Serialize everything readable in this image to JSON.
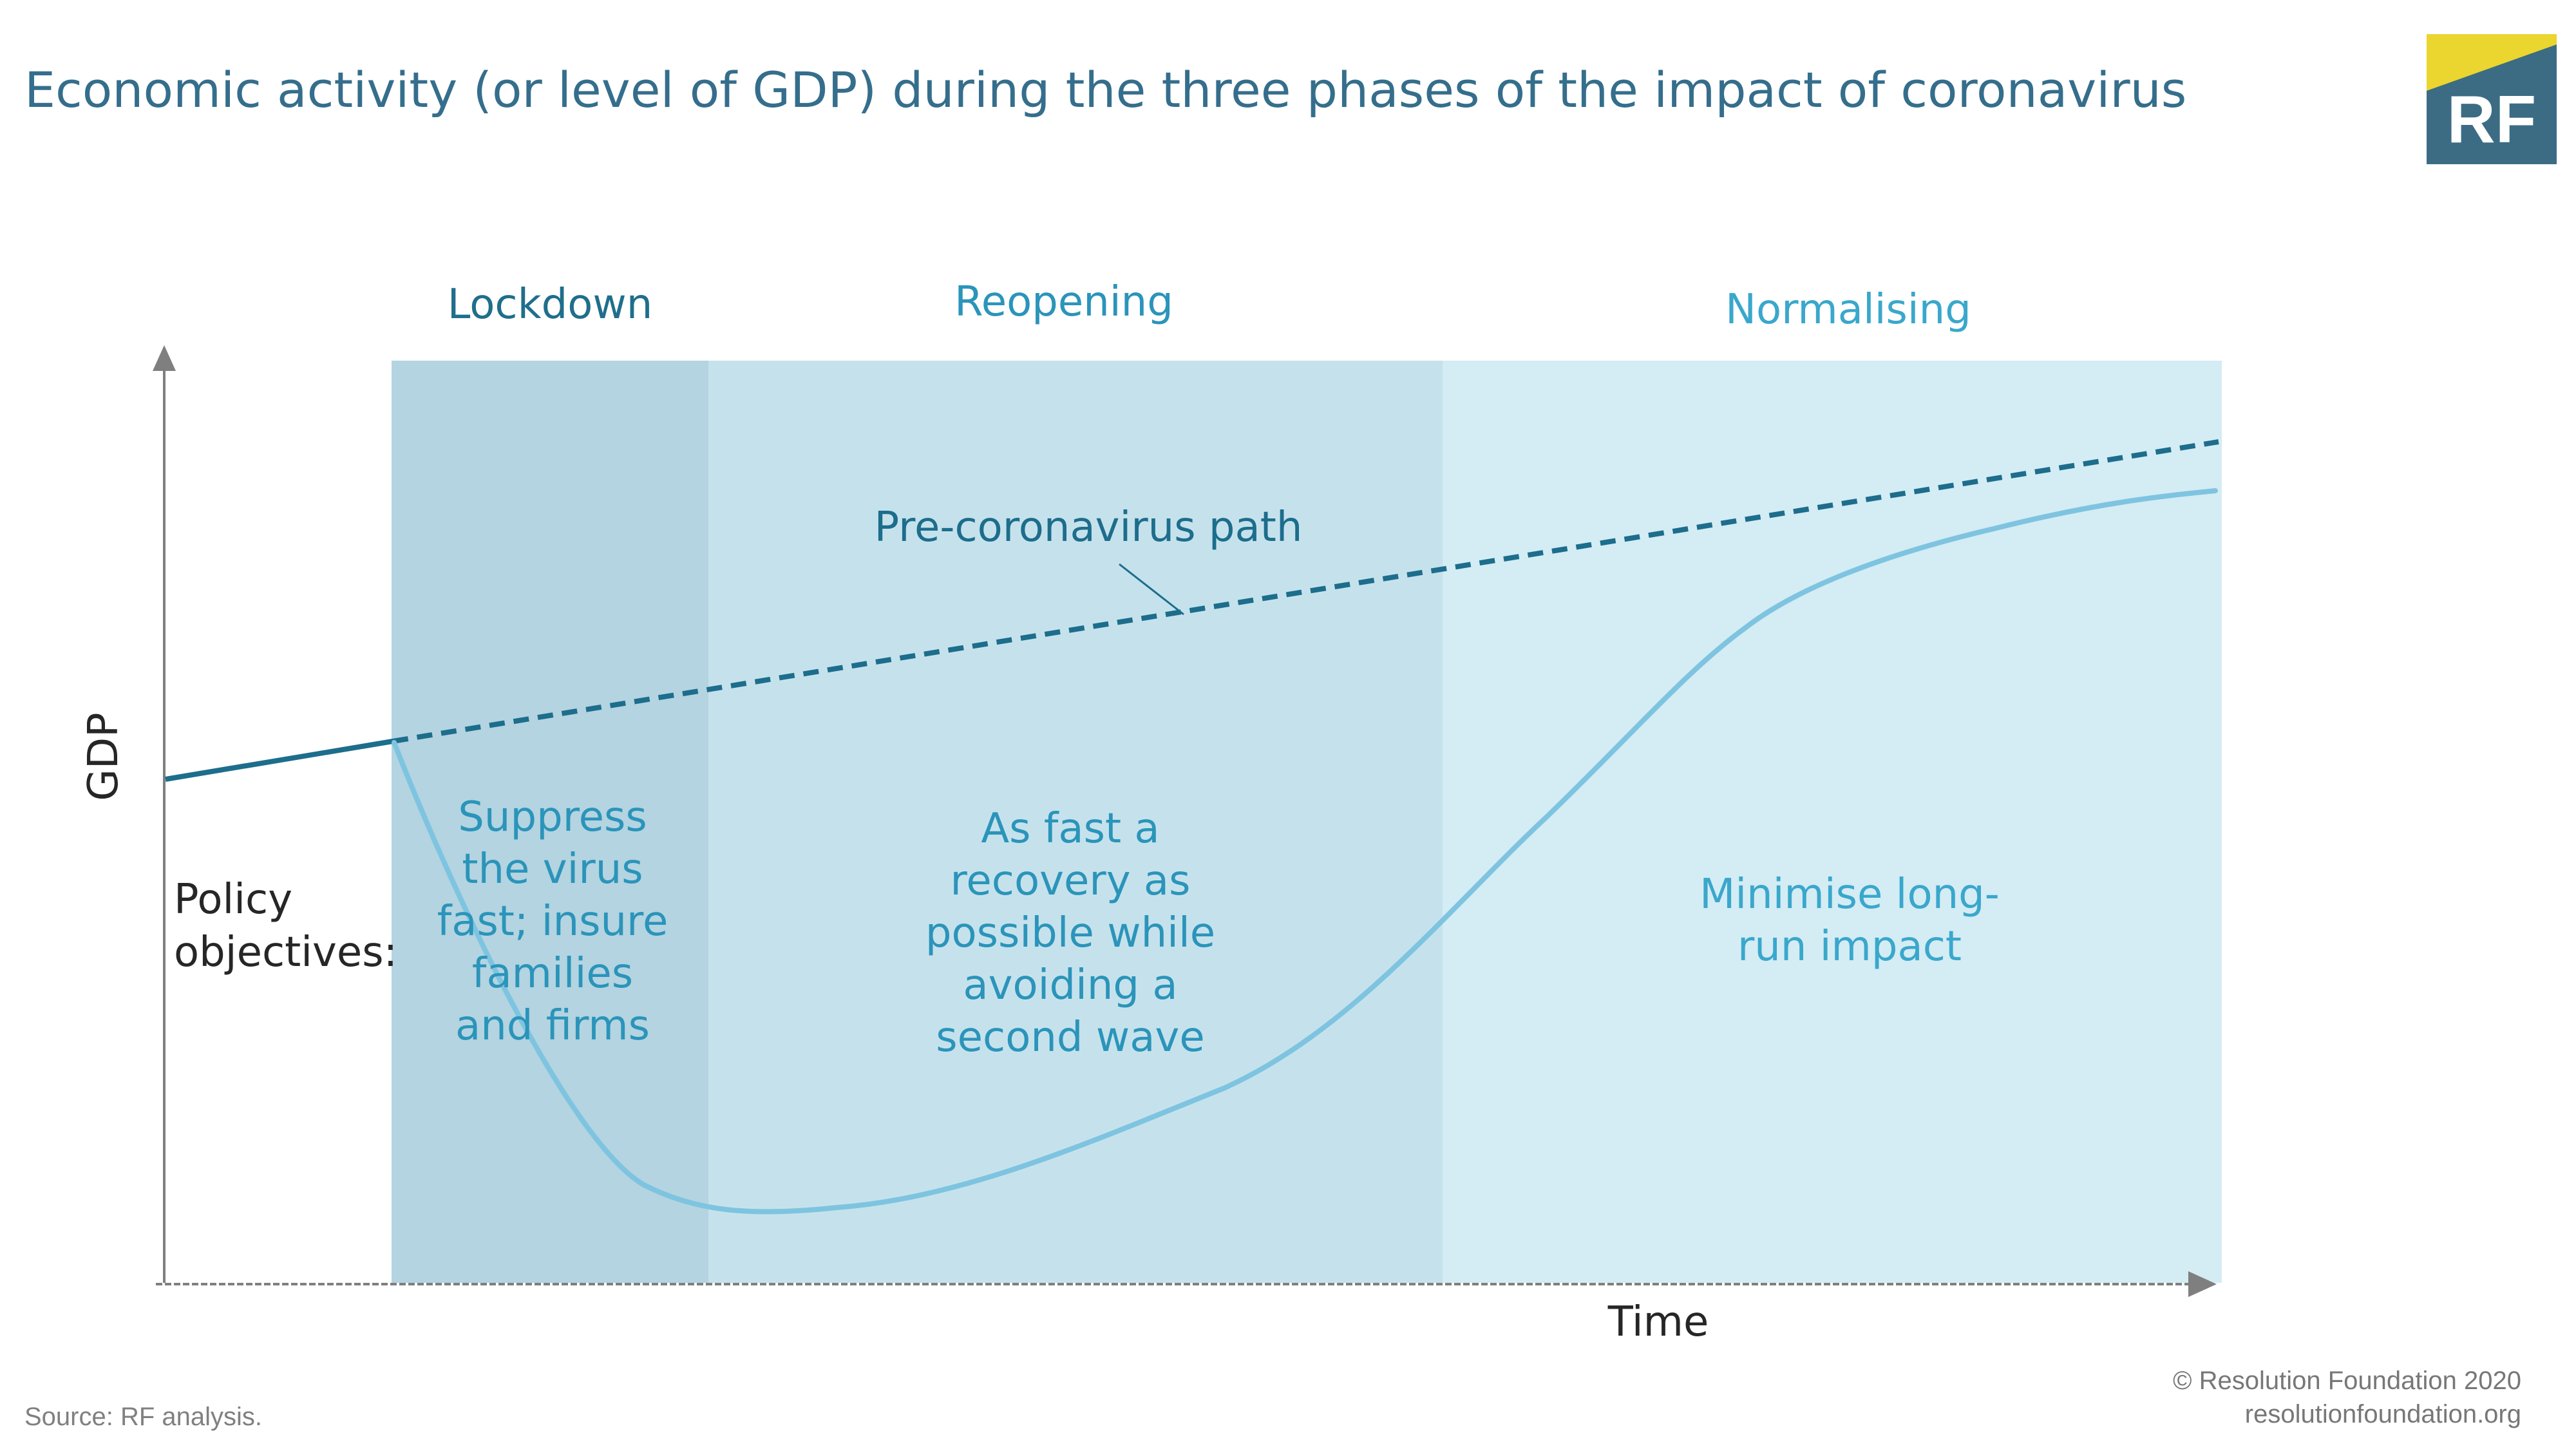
{
  "title": "Economic activity (or level of GDP) during the three phases of the impact of coronavirus",
  "logo": {
    "text": "RF",
    "colors": {
      "yellow": "#ebd52f",
      "teal": "#3b6c84"
    }
  },
  "colors": {
    "lockdown_bg": "#b3d4e0",
    "reopening_bg": "#c5e2ec",
    "normalising_bg": "#d4ecf4",
    "pre_path": "#1d6d8c",
    "actual_path": "#7ec4e0",
    "axis": "#7f7f7f",
    "title_text": "#356e8c"
  },
  "phases": [
    {
      "label": "Lockdown",
      "objective_lines": [
        "Suppress",
        "the virus",
        "fast; insure",
        "families",
        "and firms"
      ],
      "label_color": "#1f6e8c",
      "text_color": "#2b94ba"
    },
    {
      "label": "Reopening",
      "objective_lines": [
        "As fast a",
        "recovery as",
        "possible while",
        "avoiding a",
        "second wave"
      ],
      "label_color": "#2b94ba",
      "text_color": "#2b94ba"
    },
    {
      "label": "Normalising",
      "objective_lines": [
        "Minimise long-",
        "run impact"
      ],
      "label_color": "#3aa7cc",
      "text_color": "#3aa7cc"
    }
  ],
  "y_axis_label": "GDP",
  "x_axis_label": "Time",
  "policy_label_lines": [
    "Policy",
    "objectives:"
  ],
  "pre_path_label": "Pre-coronavirus path",
  "source": "Source: RF analysis.",
  "copyright": [
    "© Resolution Foundation 2020",
    "resolutionfoundation.org"
  ]
}
